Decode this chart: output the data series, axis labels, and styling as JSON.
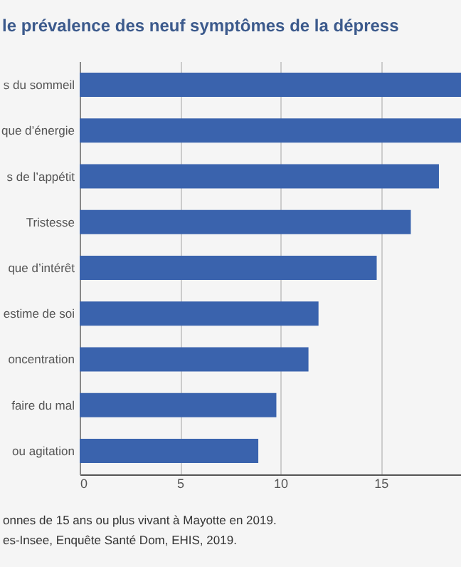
{
  "chart_data": {
    "type": "bar",
    "orientation": "horizontal",
    "title": "le prévalence des neuf symptômes de la dépress",
    "categories": [
      "s du sommeil",
      "que d’énergie",
      "s de l’appétit",
      "Tristesse",
      "que d’intérêt",
      "estime de soi",
      "oncentration",
      "faire du mal",
      "ou agitation"
    ],
    "values": [
      19,
      19,
      17.9,
      16.5,
      14.8,
      11.9,
      11.4,
      9.8,
      8.9
    ],
    "color": "#3a63ad",
    "xlim": [
      0,
      19
    ],
    "xticks": [
      0,
      5,
      10,
      15
    ],
    "grid": "x",
    "annotations": [
      "onnes de 15 ans ou plus vivant à Mayotte en 2019.",
      "es-Insee, Enquête Santé Dom, EHIS, 2019."
    ]
  }
}
